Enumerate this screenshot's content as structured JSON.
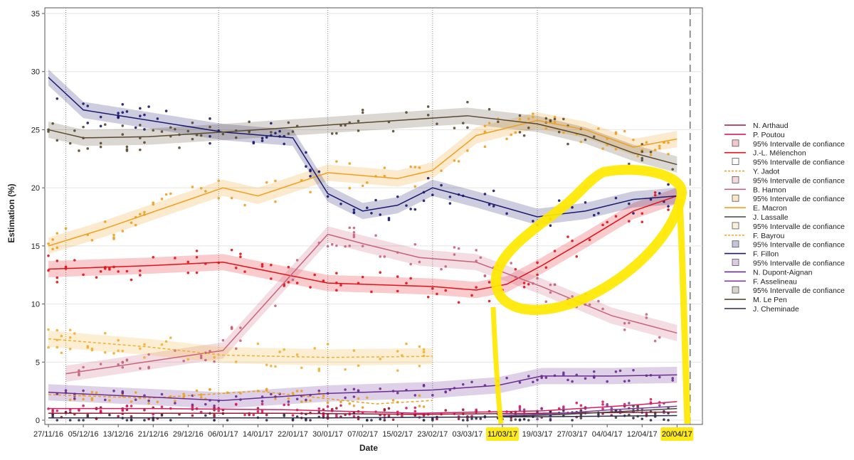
{
  "chart_data": {
    "type": "scatter",
    "xlabel": "Date",
    "ylabel": "Estimation (%)",
    "ylim": [
      0,
      35
    ],
    "yticks": [
      0,
      5,
      10,
      15,
      20,
      25,
      30,
      35
    ],
    "xlim": [
      "2016-11-27",
      "2017-04-25"
    ],
    "xticks": [
      "27/11/16",
      "05/12/16",
      "13/12/16",
      "21/12/16",
      "29/12/16",
      "06/01/17",
      "14/01/17",
      "22/01/17",
      "30/01/17",
      "07/02/17",
      "15/02/17",
      "23/02/17",
      "03/03/17",
      "11/03/17",
      "19/03/17",
      "27/03/17",
      "04/04/17",
      "12/04/17",
      "20/04/17"
    ],
    "xtick_dates": [
      "2016-11-27",
      "2016-12-05",
      "2016-12-13",
      "2016-12-21",
      "2016-12-29",
      "2017-01-06",
      "2017-01-14",
      "2017-01-22",
      "2017-01-30",
      "2017-02-07",
      "2017-02-15",
      "2017-02-23",
      "2017-03-03",
      "2017-03-11",
      "2017-03-19",
      "2017-03-27",
      "2017-04-04",
      "2017-04-12",
      "2017-04-20"
    ],
    "grid": true,
    "reference_lines": [
      "2016-12-01",
      "2017-01-05",
      "2017-01-30",
      "2017-02-23",
      "2017-03-19"
    ],
    "end_line": "2017-04-23",
    "legend_position": "right",
    "series": [
      {
        "name": "N. Arthaud",
        "color": "#9b1b30",
        "style": "solid",
        "x": [
          "2016-11-27",
          "2016-12-20",
          "2017-01-20",
          "2017-02-20",
          "2017-03-20",
          "2017-04-20"
        ],
        "values": [
          0.6,
          0.6,
          0.6,
          0.5,
          0.6,
          0.7
        ]
      },
      {
        "name": "P. Poutou",
        "color": "#d81b60",
        "style": "solid",
        "x": [
          "2016-11-27",
          "2016-12-20",
          "2017-01-20",
          "2017-02-20",
          "2017-03-20",
          "2017-04-10",
          "2017-04-20"
        ],
        "values": [
          1.0,
          1.0,
          0.9,
          0.6,
          0.8,
          1.3,
          1.6
        ]
      },
      {
        "name": "J.-L. Mélenchon",
        "color": "#e2121a",
        "style": "solid",
        "band": true,
        "x": [
          "2016-11-27",
          "2016-12-20",
          "2017-01-06",
          "2017-01-30",
          "2017-02-23",
          "2017-03-05",
          "2017-03-12",
          "2017-03-20",
          "2017-03-30",
          "2017-04-10",
          "2017-04-20"
        ],
        "values": [
          13.0,
          13.3,
          13.6,
          11.8,
          11.5,
          11.2,
          11.7,
          13.3,
          15.5,
          18.0,
          19.3
        ]
      },
      {
        "name": "Y. Jadot",
        "color": "#e8a020",
        "style": "dashed",
        "x": [
          "2016-11-27",
          "2016-12-20",
          "2017-01-14",
          "2017-02-10",
          "2017-02-23"
        ],
        "values": [
          2.2,
          1.9,
          2.5,
          1.4,
          1.7
        ]
      },
      {
        "name": "B. Hamon",
        "color": "#c9637d",
        "style": "solid",
        "band": true,
        "x": [
          "2016-12-01",
          "2017-01-06",
          "2017-01-30",
          "2017-02-07",
          "2017-02-20",
          "2017-03-05",
          "2017-03-20",
          "2017-04-05",
          "2017-04-20"
        ],
        "values": [
          4.0,
          6.0,
          16.0,
          15.2,
          14.0,
          13.6,
          11.5,
          9.0,
          7.5
        ]
      },
      {
        "name": "E. Macron",
        "color": "#f0a01e",
        "style": "solid",
        "band": true,
        "x": [
          "2016-11-27",
          "2016-12-10",
          "2017-01-06",
          "2017-01-14",
          "2017-01-30",
          "2017-02-15",
          "2017-02-23",
          "2017-03-05",
          "2017-03-19",
          "2017-03-30",
          "2017-04-10",
          "2017-04-20"
        ],
        "values": [
          15.0,
          16.5,
          20.0,
          19.3,
          21.3,
          20.8,
          21.5,
          24.5,
          25.8,
          25.0,
          23.5,
          24.2
        ]
      },
      {
        "name": "J. Lassalle",
        "color": "#444444",
        "style": "solid",
        "x": [
          "2017-03-10",
          "2017-03-25",
          "2017-04-10",
          "2017-04-20"
        ],
        "values": [
          0.3,
          0.5,
          0.8,
          1.0
        ]
      },
      {
        "name": "F. Bayrou",
        "color": "#f0b030",
        "style": "dashed",
        "band": true,
        "x": [
          "2016-11-27",
          "2016-12-20",
          "2017-01-06",
          "2017-01-30",
          "2017-02-23"
        ],
        "values": [
          7.0,
          6.3,
          5.6,
          5.4,
          5.5
        ]
      },
      {
        "name": "F. Fillon",
        "color": "#1a1a6e",
        "style": "solid",
        "band": true,
        "x": [
          "2016-11-27",
          "2016-12-05",
          "2017-01-06",
          "2017-01-22",
          "2017-01-30",
          "2017-02-07",
          "2017-02-15",
          "2017-02-23",
          "2017-03-05",
          "2017-03-19",
          "2017-03-30",
          "2017-04-10",
          "2017-04-20"
        ],
        "values": [
          29.5,
          26.7,
          24.8,
          24.3,
          19.5,
          18.0,
          18.5,
          20.0,
          19.0,
          17.5,
          18.0,
          19.0,
          19.3
        ]
      },
      {
        "name": "N. Dupont-Aignan",
        "color": "#6a2c91",
        "style": "solid",
        "band": true,
        "x": [
          "2016-11-27",
          "2017-01-06",
          "2017-01-30",
          "2017-02-23",
          "2017-03-10",
          "2017-03-20",
          "2017-04-05",
          "2017-04-20"
        ],
        "values": [
          2.4,
          1.7,
          2.3,
          2.6,
          3.0,
          3.8,
          3.8,
          3.9
        ]
      },
      {
        "name": "F. Asselineau",
        "color": "#7b3fa0",
        "style": "solid",
        "x": [
          "2017-03-10",
          "2017-03-25",
          "2017-04-05",
          "2017-04-20"
        ],
        "values": [
          0.4,
          0.6,
          0.9,
          1.2
        ]
      },
      {
        "name": "M. Le Pen",
        "color": "#5a4a30",
        "style": "solid",
        "band": true,
        "x": [
          "2016-11-27",
          "2016-12-05",
          "2016-12-20",
          "2017-01-06",
          "2017-01-30",
          "2017-02-23",
          "2017-03-03",
          "2017-03-19",
          "2017-03-30",
          "2017-04-10",
          "2017-04-20"
        ],
        "values": [
          25.0,
          24.3,
          24.4,
          24.8,
          25.4,
          26.0,
          26.2,
          25.5,
          24.5,
          23.0,
          22.0
        ]
      },
      {
        "name": "J. Cheminade",
        "color": "#2c2c4a",
        "style": "solid",
        "x": [
          "2016-11-27",
          "2017-01-30",
          "2017-03-20",
          "2017-04-20"
        ],
        "values": [
          0.2,
          0.2,
          0.3,
          0.4
        ]
      }
    ],
    "legend": [
      {
        "label": "N. Arthaud",
        "kind": "line",
        "color": "#9b1b30"
      },
      {
        "label": "P. Poutou",
        "kind": "line",
        "color": "#d81b60"
      },
      {
        "label": "95% Intervalle de confiance",
        "kind": "box",
        "color": "#f4c6ce"
      },
      {
        "label": "J.-L. Mélenchon",
        "kind": "line",
        "color": "#e2121a"
      },
      {
        "label": "95% Intervalle de confiance",
        "kind": "box",
        "color": "#ffffff"
      },
      {
        "label": "Y. Jadot",
        "kind": "dashed",
        "color": "#e8a020"
      },
      {
        "label": "95% Intervalle de confiance",
        "kind": "box",
        "color": "#f2dada"
      },
      {
        "label": "B. Hamon",
        "kind": "line",
        "color": "#c9637d"
      },
      {
        "label": "95% Intervalle de confiance",
        "kind": "box",
        "color": "#fbe6c8"
      },
      {
        "label": "E. Macron",
        "kind": "line",
        "color": "#f0a01e"
      },
      {
        "label": "J. Lassalle",
        "kind": "line",
        "color": "#444444"
      },
      {
        "label": "95% Intervalle de confiance",
        "kind": "box",
        "color": "#fbf0d8"
      },
      {
        "label": "F. Bayrou",
        "kind": "dashed",
        "color": "#f0b030"
      },
      {
        "label": "95% Intervalle de confiance",
        "kind": "box",
        "color": "#c4c4dc"
      },
      {
        "label": "F. Fillon",
        "kind": "line",
        "color": "#1a1a6e"
      },
      {
        "label": "95% Intervalle de confiance",
        "kind": "box",
        "color": "#dccbe6"
      },
      {
        "label": "N. Dupont-Aignan",
        "kind": "line",
        "color": "#6a2c91"
      },
      {
        "label": "F. Asselineau",
        "kind": "line",
        "color": "#7b3fa0"
      },
      {
        "label": "95% Intervalle de confiance",
        "kind": "box",
        "color": "#d8d4cc"
      },
      {
        "label": "M. Le Pen",
        "kind": "line",
        "color": "#5a4a30"
      },
      {
        "label": "J. Cheminade",
        "kind": "line",
        "color": "#2c2c4a"
      }
    ],
    "highlight_color": "#ffe800",
    "highlighted_ticks": [
      "11/03/17",
      "20/04/17"
    ]
  }
}
